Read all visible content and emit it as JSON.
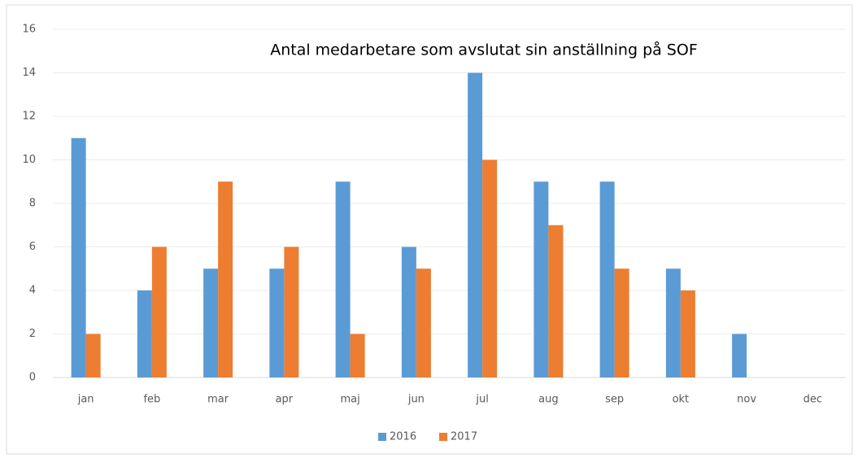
{
  "chart_data": {
    "type": "bar",
    "title": "Antal medarbetare  som avslutat sin anställning på SOF",
    "categories": [
      "jan",
      "feb",
      "mar",
      "apr",
      "maj",
      "jun",
      "jul",
      "aug",
      "sep",
      "okt",
      "nov",
      "dec"
    ],
    "series": [
      {
        "name": "2016",
        "color": "#5b9bd5",
        "values": [
          11,
          4,
          5,
          5,
          9,
          6,
          14,
          9,
          9,
          5,
          2,
          null
        ]
      },
      {
        "name": "2017",
        "color": "#ed7d31",
        "values": [
          2,
          6,
          9,
          6,
          2,
          5,
          10,
          7,
          5,
          4,
          null,
          null
        ]
      }
    ],
    "ylim": [
      0,
      16
    ],
    "yticks": [
      0,
      2,
      4,
      6,
      8,
      10,
      12,
      14,
      16
    ],
    "grid": true,
    "legend": "bottom"
  }
}
